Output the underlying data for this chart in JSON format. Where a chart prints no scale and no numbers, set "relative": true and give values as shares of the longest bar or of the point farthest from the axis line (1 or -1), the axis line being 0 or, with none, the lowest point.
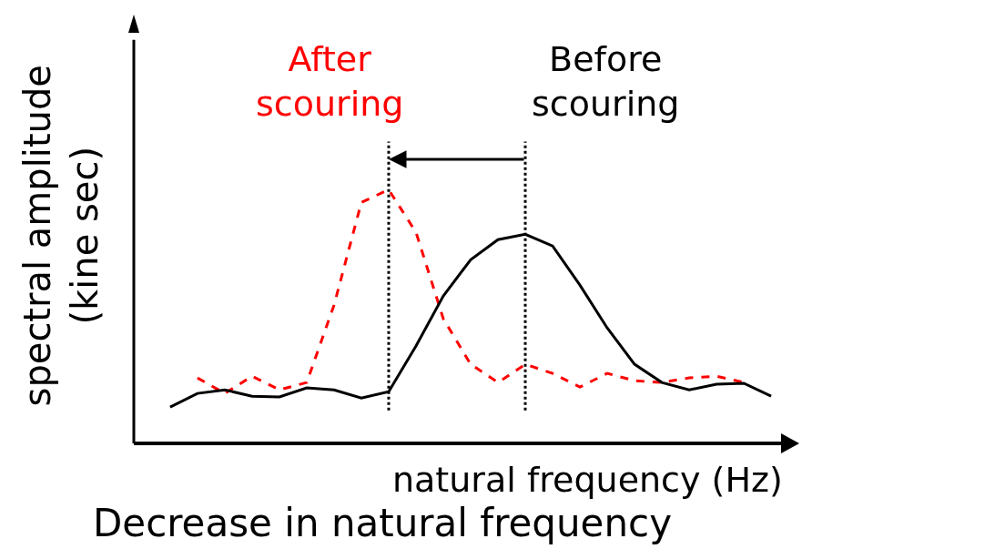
{
  "chart_data": {
    "type": "line",
    "relative": true,
    "xlabel": "natural frequency (Hz)",
    "ylabel": "spectral amplitude\n(kine sec)",
    "categories": [
      null,
      null,
      null,
      null,
      null,
      null,
      null,
      null,
      null,
      null,
      null,
      null,
      null,
      null,
      null,
      null,
      null,
      null,
      null,
      null,
      null,
      null,
      null
    ],
    "series": [
      {
        "name": "After scouring",
        "color": "#ff0000",
        "line_style": "dashed",
        "values": [
          null,
          0.258,
          0.197,
          0.265,
          0.211,
          0.24,
          0.545,
          0.95,
          1,
          0.832,
          0.491,
          0.312,
          0.24,
          0.312,
          0.276,
          0.222,
          0.276,
          0.247,
          0.24,
          0.258,
          0.265,
          0.24,
          null
        ]
      },
      {
        "name": "Before scouring",
        "color": "#000000",
        "line_style": "solid",
        "values": [
          0.143,
          0.197,
          0.211,
          0.186,
          0.183,
          0.219,
          0.211,
          0.179,
          0.204,
          0.384,
          0.581,
          0.724,
          0.803,
          0.824,
          0.778,
          0.624,
          0.455,
          0.312,
          0.24,
          0.211,
          0.233,
          0.237,
          0.186
        ]
      }
    ],
    "annotations": [
      "Decrease in natural frequency"
    ],
    "legend": false,
    "marker": "none"
  }
}
